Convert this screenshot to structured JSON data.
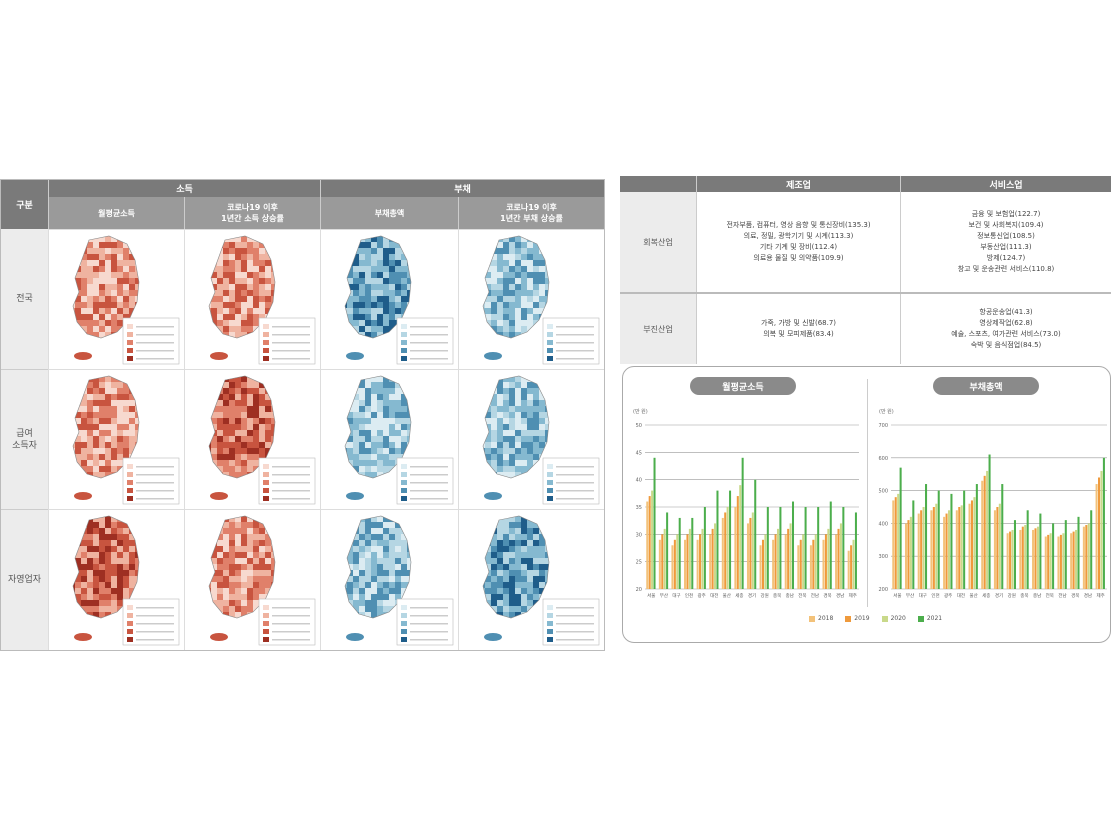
{
  "map_table": {
    "corner_label": "구분",
    "group_income": "소득",
    "group_debt": "부채",
    "columns": [
      {
        "label": "월평균소득",
        "tone": "red"
      },
      {
        "label": "코로나19 이후\n1년간 소득 상승률",
        "tone": "red"
      },
      {
        "label": "부채총액",
        "tone": "blue"
      },
      {
        "label": "코로나19 이후\n1년간 부채 상승률",
        "tone": "blue"
      }
    ],
    "rows": [
      {
        "label": "전국"
      },
      {
        "label": "급여\n소득자"
      },
      {
        "label": "자영업자"
      }
    ],
    "map_shades": {
      "red": [
        "#f7d9cf",
        "#efb3a0",
        "#e0806a",
        "#c8543f",
        "#9e2f22"
      ],
      "blue": [
        "#dcecf2",
        "#b5d6e3",
        "#85b9d0",
        "#4f8fb2",
        "#1f5d8a"
      ]
    }
  },
  "industry_table": {
    "col_manufacturing": "제조업",
    "col_service": "서비스업",
    "rows": [
      {
        "label": "회복산업",
        "manufacturing": [
          "전자부품, 컴퓨터, 영상 음향 및 통신장비(135.3)",
          "의료, 정밀, 광학기기 및 시계(113.3)",
          "기타 기계 및 장비(112.4)",
          "의료용 물질 및 의약품(109.9)"
        ],
        "service": [
          "금융 및 보험업(122.7)",
          "보건 및 사회복지(109.4)",
          "정보통신업(108.5)",
          "부동산업(111.3)",
          "방제(124.7)",
          "창고 및 운송관련 서비스(110.8)"
        ]
      },
      {
        "label": "부진산업",
        "manufacturing": [
          "가죽, 가방 및 신발(68.7)",
          "의복 및 모피제품(83.4)"
        ],
        "service": [
          "항공운송업(41.3)",
          "영상제작업(62.8)",
          "예술, 스포츠, 여가관련 서비스(73.0)",
          "숙박 및 음식점업(84.5)"
        ]
      }
    ]
  },
  "charts": {
    "legend": [
      "2018",
      "2019",
      "2020",
      "2021"
    ],
    "colors": [
      "#f3c27a",
      "#ef9a3c",
      "#c9d98a",
      "#4cae4c"
    ]
  },
  "chart_data": [
    {
      "type": "bar",
      "title": "월평균소득",
      "ylabel": "(만 원)",
      "ylim": [
        20,
        50
      ],
      "yticks": [
        "20",
        "25",
        "30",
        "35",
        "40",
        "45",
        "50"
      ],
      "categories": [
        "서울",
        "부산",
        "대구",
        "인천",
        "광주",
        "대전",
        "울산",
        "세종",
        "경기",
        "강원",
        "충북",
        "충남",
        "전북",
        "전남",
        "경북",
        "경남",
        "제주"
      ],
      "series": [
        {
          "name": "2018",
          "values": [
            36,
            29,
            28,
            29,
            29,
            30,
            33,
            35,
            32,
            28,
            29,
            30,
            28,
            28,
            29,
            30,
            27
          ]
        },
        {
          "name": "2019",
          "values": [
            37,
            30,
            29,
            30,
            30,
            31,
            34,
            37,
            33,
            29,
            30,
            31,
            29,
            29,
            30,
            31,
            28
          ]
        },
        {
          "name": "2020",
          "values": [
            38,
            31,
            30,
            31,
            31,
            32,
            35,
            39,
            34,
            30,
            31,
            32,
            30,
            30,
            31,
            32,
            29
          ]
        },
        {
          "name": "2021",
          "values": [
            44,
            34,
            33,
            33,
            35,
            38,
            38,
            44,
            40,
            35,
            35,
            36,
            35,
            35,
            36,
            35,
            34
          ]
        }
      ]
    },
    {
      "type": "bar",
      "title": "부채총액",
      "ylabel": "(만 원)",
      "ylim": [
        200,
        700
      ],
      "yticks": [
        "200",
        "300",
        "400",
        "500",
        "600",
        "700"
      ],
      "categories": [
        "서울",
        "부산",
        "대구",
        "인천",
        "광주",
        "대전",
        "울산",
        "세종",
        "경기",
        "강원",
        "충북",
        "충남",
        "전북",
        "전남",
        "경북",
        "경남",
        "제주"
      ],
      "series": [
        {
          "name": "2018",
          "values": [
            470,
            400,
            430,
            440,
            420,
            440,
            460,
            530,
            440,
            370,
            380,
            380,
            360,
            360,
            370,
            390,
            520
          ]
        },
        {
          "name": "2019",
          "values": [
            480,
            410,
            440,
            450,
            430,
            450,
            470,
            545,
            450,
            375,
            390,
            385,
            365,
            365,
            375,
            395,
            540
          ]
        },
        {
          "name": "2020",
          "values": [
            490,
            420,
            450,
            460,
            440,
            455,
            480,
            560,
            460,
            380,
            395,
            390,
            370,
            370,
            380,
            400,
            560
          ]
        },
        {
          "name": "2021",
          "values": [
            570,
            470,
            520,
            500,
            490,
            500,
            520,
            610,
            520,
            410,
            440,
            430,
            400,
            410,
            420,
            440,
            600
          ]
        }
      ]
    }
  ]
}
